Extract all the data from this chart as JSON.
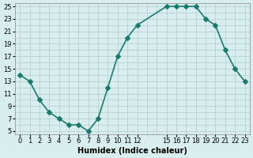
{
  "x": [
    0,
    1,
    2,
    3,
    4,
    5,
    6,
    7,
    8,
    9,
    10,
    11,
    12,
    15,
    16,
    17,
    18,
    19,
    20,
    21,
    22,
    23
  ],
  "y": [
    14,
    13,
    10,
    8,
    7,
    6,
    6,
    5,
    7,
    12,
    17,
    20,
    22,
    25,
    25,
    25,
    25,
    23,
    22,
    18,
    15,
    13
  ],
  "line_color": "#1a7a6e",
  "marker": "D",
  "marker_size": 3,
  "bg_color": "#d8eeee",
  "grid_color": "#b0cccc",
  "xlabel": "Humidex (Indice chaleur)",
  "xlim": [
    -0.5,
    23.5
  ],
  "ylim": [
    5,
    25.5
  ],
  "yticks": [
    5,
    7,
    9,
    11,
    13,
    15,
    17,
    19,
    21,
    23,
    25
  ],
  "all_xticks": [
    0,
    1,
    2,
    3,
    4,
    5,
    6,
    7,
    8,
    9,
    10,
    11,
    12,
    13,
    14,
    15,
    16,
    17,
    18,
    19,
    20,
    21,
    22,
    23
  ],
  "labeled_xticks": [
    0,
    1,
    2,
    3,
    4,
    5,
    6,
    7,
    8,
    9,
    10,
    11,
    12,
    15,
    16,
    17,
    18,
    19,
    20,
    21,
    22,
    23
  ],
  "linewidth": 1.2,
  "xlabel_fontsize": 7,
  "tick_fontsize": 6
}
